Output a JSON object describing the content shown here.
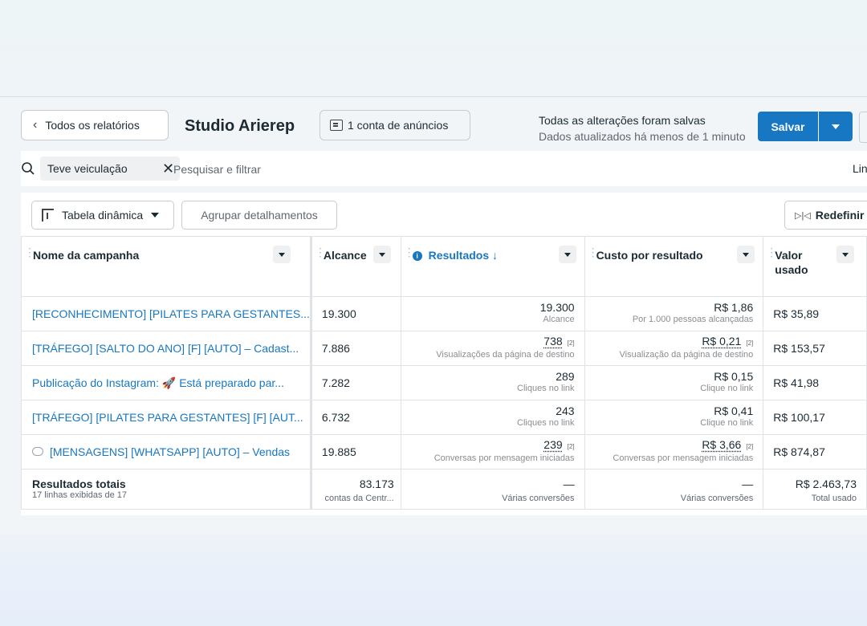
{
  "header": {
    "back_label": "Todos os relatórios",
    "title": "Studio Arierep",
    "account_label": "1 conta de anúncios",
    "status_line1": "Todas as alterações foram salvas",
    "status_line2": "Dados atualizados há menos de 1 minuto",
    "save_label": "Salvar",
    "accent": "#1877c2"
  },
  "filter": {
    "chip_label": "Teve veiculação",
    "search_placeholder": "Pesquisar e filtrar",
    "right_label": "Lin"
  },
  "toolbar": {
    "pivot_label": "Tabela dinâmica",
    "group_label": "Agrupar detalhamentos",
    "reset_label": "Redefinir"
  },
  "table": {
    "columns": [
      "Nome da campanha",
      "Alcance",
      "Resultados ↓",
      "Custo por resultado",
      "Valor usado"
    ],
    "rows": [
      {
        "name": "[RECONHECIMENTO] [PILATES PARA GESTANTES...",
        "reach": "19.300",
        "result": "19.300",
        "result_badge": "",
        "result_sub": "Alcance",
        "cost": "R$ 1,86",
        "cost_badge": "",
        "cost_sub": "Por 1.000 pessoas alcançadas",
        "spent": "R$ 35,89"
      },
      {
        "name": "[TRÁFEGO] [SALTO DO ANO] [F] [AUTO] – Cadast...",
        "reach": "7.886",
        "result": "738",
        "result_badge": "[2]",
        "result_sub": "Visualizações da página de destino",
        "cost": "R$ 0,21",
        "cost_badge": "[2]",
        "cost_sub": "Visualização da página de destino",
        "spent": "R$ 153,57"
      },
      {
        "name": "Publicação do Instagram: 🚀 Está preparado par...",
        "reach": "7.282",
        "result": "289",
        "result_badge": "",
        "result_sub": "Cliques no link",
        "cost": "R$ 0,15",
        "cost_badge": "",
        "cost_sub": "Clique no link",
        "spent": "R$ 41,98"
      },
      {
        "name": "[TRÁFEGO] [PILATES PARA GESTANTES] [F] [AUT...",
        "reach": "6.732",
        "result": "243",
        "result_badge": "",
        "result_sub": "Cliques no link",
        "cost": "R$ 0,41",
        "cost_badge": "",
        "cost_sub": "Clique no link",
        "spent": "R$ 100,17"
      },
      {
        "name": "[MENSAGENS] [WHATSAPP] [AUTO] – Vendas",
        "reach": "19.885",
        "result": "239",
        "result_badge": "[2]",
        "result_sub": "Conversas por mensagem iniciadas",
        "cost": "R$ 3,66",
        "cost_badge": "[2]",
        "cost_sub": "Conversas por mensagem iniciadas",
        "spent": "R$ 874,87"
      }
    ],
    "totals": {
      "title": "Resultados totais",
      "subtitle": "17 linhas exibidas de 17",
      "reach": "83.173",
      "reach_sub": "contas da Centr...",
      "result": "—",
      "result_sub": "Várias conversões",
      "cost": "—",
      "cost_sub": "Várias conversões",
      "spent": "R$ 2.463,73",
      "spent_sub": "Total usado"
    }
  }
}
